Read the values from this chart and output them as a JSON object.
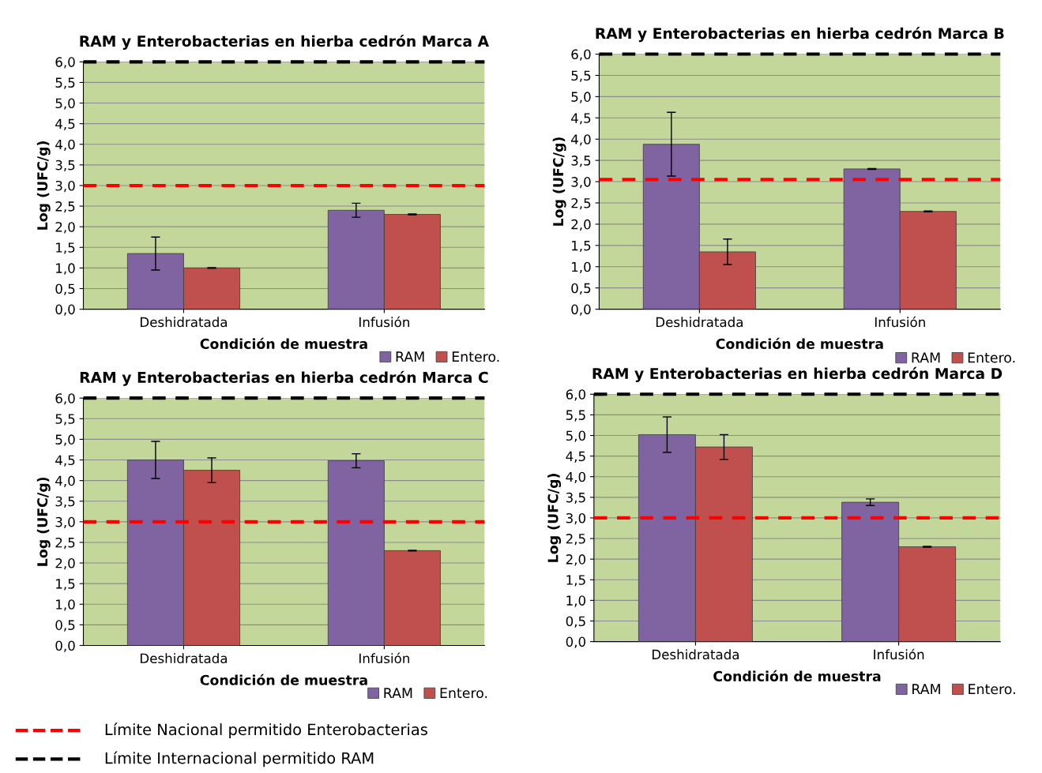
{
  "chart_data": [
    {
      "type": "bar",
      "title": "RAM y Enterobacterias en hierba cedrón Marca A",
      "xlabel": "Condición de muestra",
      "ylabel": "Log (UFC/g)",
      "categories": [
        "Deshidratada",
        "Infusión"
      ],
      "series": [
        {
          "name": "RAM",
          "color": "#8064a2",
          "values": [
            1.35,
            2.4
          ],
          "errors": [
            0.4,
            0.17
          ]
        },
        {
          "name": "Entero.",
          "color": "#c0504d",
          "values": [
            1.0,
            2.3
          ],
          "errors": [
            0.01,
            0.01
          ]
        }
      ],
      "ylim": [
        0,
        6
      ],
      "yticks": [
        {
          "value": 0,
          "label": "0,0"
        },
        {
          "value": 0.5,
          "label": "0,5"
        },
        {
          "value": 1,
          "label": "1,0"
        },
        {
          "value": 1.5,
          "label": "1,5"
        },
        {
          "value": 2,
          "label": "2,0"
        },
        {
          "value": 2.5,
          "label": "2,5"
        },
        {
          "value": 3,
          "label": "3,0"
        },
        {
          "value": 3.5,
          "label": "3,5"
        },
        {
          "value": 4,
          "label": "4,0"
        },
        {
          "value": 4.5,
          "label": "4,5"
        },
        {
          "value": 5,
          "label": "5,0"
        },
        {
          "value": 5.5,
          "label": "5,5"
        },
        {
          "value": 6,
          "label": "6,0"
        }
      ],
      "grid": "y",
      "legend": "bottom right",
      "ref_lines": [
        {
          "axis": "y",
          "value": 3,
          "color": "#ff0000",
          "line_style": "dashed"
        },
        {
          "axis": "y",
          "value": 6,
          "color": "#000000",
          "line_style": "dashed"
        }
      ]
    },
    {
      "type": "bar",
      "title": "RAM y Enterobacterias en hierba cedrón Marca B",
      "xlabel": "Condición de muestra",
      "ylabel": "Log (UFC/g)",
      "categories": [
        "Deshidratada",
        "Infusión"
      ],
      "series": [
        {
          "name": "RAM",
          "color": "#8064a2",
          "values": [
            3.88,
            3.3
          ],
          "errors": [
            0.75,
            0.01
          ]
        },
        {
          "name": "Entero.",
          "color": "#c0504d",
          "values": [
            1.35,
            2.3
          ],
          "errors": [
            0.3,
            0.01
          ]
        }
      ],
      "ylim": [
        0,
        6
      ],
      "yticks": [
        {
          "value": 0,
          "label": "0,0"
        },
        {
          "value": 0.5,
          "label": "0,5"
        },
        {
          "value": 1,
          "label": "1,0"
        },
        {
          "value": 1.5,
          "label": "1,5"
        },
        {
          "value": 2,
          "label": "2,0"
        },
        {
          "value": 2.5,
          "label": "2,5"
        },
        {
          "value": 3,
          "label": "3,0"
        },
        {
          "value": 3.5,
          "label": "3,5"
        },
        {
          "value": 4,
          "label": "4,0"
        },
        {
          "value": 4.5,
          "label": "4,5"
        },
        {
          "value": 5,
          "label": "5,0"
        },
        {
          "value": 5.5,
          "label": "5,5"
        },
        {
          "value": 6,
          "label": "6,0"
        }
      ],
      "grid": "y",
      "legend": "bottom right",
      "ref_lines": [
        {
          "axis": "y",
          "value": 3.05,
          "color": "#ff0000",
          "line_style": "dashed"
        },
        {
          "axis": "y",
          "value": 6,
          "color": "#000000",
          "line_style": "dashed"
        }
      ]
    },
    {
      "type": "bar",
      "title": "RAM y Enterobacterias en hierba cedrón Marca C",
      "xlabel": "Condición de muestra",
      "ylabel": "Log (UFC/g)",
      "categories": [
        "Deshidratada",
        "Infusión"
      ],
      "series": [
        {
          "name": "RAM",
          "color": "#8064a2",
          "values": [
            4.5,
            4.48
          ],
          "errors": [
            0.45,
            0.17
          ]
        },
        {
          "name": "Entero.",
          "color": "#c0504d",
          "values": [
            4.25,
            2.3
          ],
          "errors": [
            0.3,
            0.01
          ]
        }
      ],
      "ylim": [
        0,
        6
      ],
      "yticks": [
        {
          "value": 0,
          "label": "0,0"
        },
        {
          "value": 0.5,
          "label": "0,5"
        },
        {
          "value": 1,
          "label": "1,0"
        },
        {
          "value": 1.5,
          "label": "1,5"
        },
        {
          "value": 2,
          "label": "2,0"
        },
        {
          "value": 2.5,
          "label": "2,5"
        },
        {
          "value": 3,
          "label": "3,0"
        },
        {
          "value": 3.5,
          "label": "3,5"
        },
        {
          "value": 4,
          "label": "4,0"
        },
        {
          "value": 4.5,
          "label": "4,5"
        },
        {
          "value": 5,
          "label": "5,0"
        },
        {
          "value": 5.5,
          "label": "5,5"
        },
        {
          "value": 6,
          "label": "6,0"
        }
      ],
      "grid": "y",
      "ref_lines": [
        {
          "axis": "y",
          "value": 3.0,
          "label": "Límite Nacional permitido Enterobacterias",
          "color": "#ff0000",
          "line_style": "dashed"
        },
        {
          "axis": "y",
          "value": 6,
          "label": "Límite Internacional permitido RAM",
          "color": "#000000",
          "line_style": "dashed"
        }
      ],
      "legend": "bottom"
    },
    {
      "type": "bar",
      "title": "RAM y Enterobacterias en hierba cedrón Marca D",
      "xlabel": "Condición de muestra",
      "ylabel": "Log (UFC/g)",
      "categories": [
        "Deshidratada",
        "Infusión"
      ],
      "series": [
        {
          "name": "RAM",
          "color": "#8064a2",
          "values": [
            5.02,
            3.38
          ],
          "errors": [
            0.43,
            0.08
          ]
        },
        {
          "name": "Entero.",
          "color": "#c0504d",
          "values": [
            4.72,
            2.3
          ],
          "errors": [
            0.3,
            0.01
          ]
        }
      ],
      "ylim": [
        0,
        6
      ],
      "yticks": [
        {
          "value": 0,
          "label": "0,0"
        },
        {
          "value": 0.5,
          "label": "0,5"
        },
        {
          "value": 1,
          "label": "1,0"
        },
        {
          "value": 1.5,
          "label": "1,5"
        },
        {
          "value": 2,
          "label": "2,0"
        },
        {
          "value": 2.5,
          "label": "2,5"
        },
        {
          "value": 3,
          "label": "3,0"
        },
        {
          "value": 3.5,
          "label": "3,5"
        },
        {
          "value": 4,
          "label": "4,0"
        },
        {
          "value": 4.5,
          "label": "4,5"
        },
        {
          "value": 5,
          "label": "5,0"
        },
        {
          "value": 5.5,
          "label": "5,5"
        },
        {
          "value": 6,
          "label": "6,0"
        }
      ],
      "grid": "y",
      "legend": "bottom right",
      "ref_lines": [
        {
          "axis": "y",
          "value": 3.0,
          "color": "#ff0000",
          "line_style": "dashed"
        },
        {
          "axis": "y",
          "value": 6,
          "color": "#000000",
          "line_style": "dashed"
        }
      ]
    }
  ]
}
